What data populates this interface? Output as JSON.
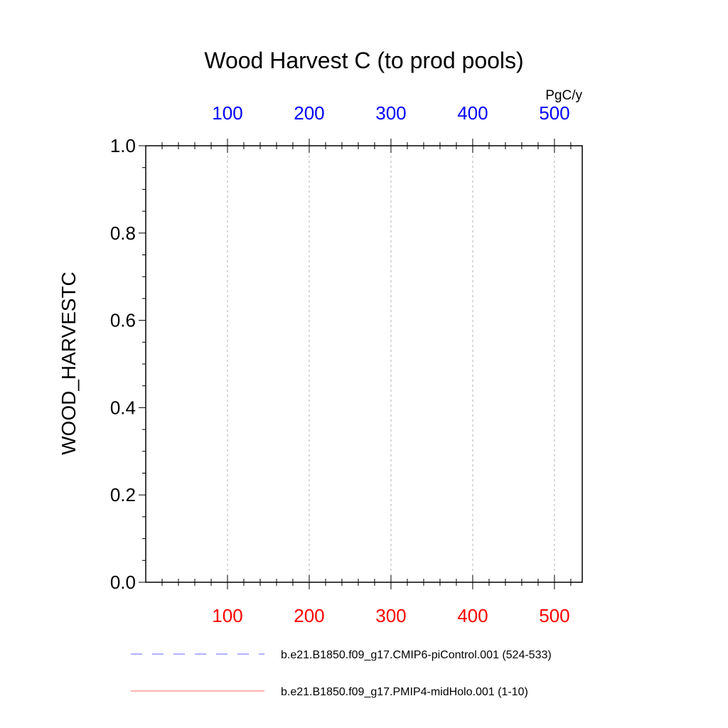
{
  "chart_data": {
    "type": "line",
    "title": "Wood Harvest C (to prod pools)",
    "units": "PgC/y",
    "ylabel": "WOOD_HARVESTC",
    "ylim": [
      0.0,
      1.0
    ],
    "yticks": [
      "0.0",
      "0.2",
      "0.4",
      "0.6",
      "0.8",
      "1.0"
    ],
    "xlim": [
      0,
      534
    ],
    "x_bottom_ticks": [
      "100",
      "200",
      "300",
      "400",
      "500"
    ],
    "x_top_ticks": [
      "100",
      "200",
      "300",
      "400",
      "500"
    ],
    "x_bottom_color": "#ff0000",
    "x_top_color": "#0000ff",
    "grid": "vertical-dashed",
    "legend_position": "bottom",
    "series": [
      {
        "name": "b.e21.B1850.f09_g17.CMIP6-piControl.001 (524-533)",
        "color": "#0000ff",
        "dash": "dashed",
        "values": []
      },
      {
        "name": "b.e21.B1850.f09_g17.PMIP4-midHolo.001 (1-10)",
        "color": "#ff0000",
        "dash": "solid",
        "values": []
      }
    ]
  }
}
